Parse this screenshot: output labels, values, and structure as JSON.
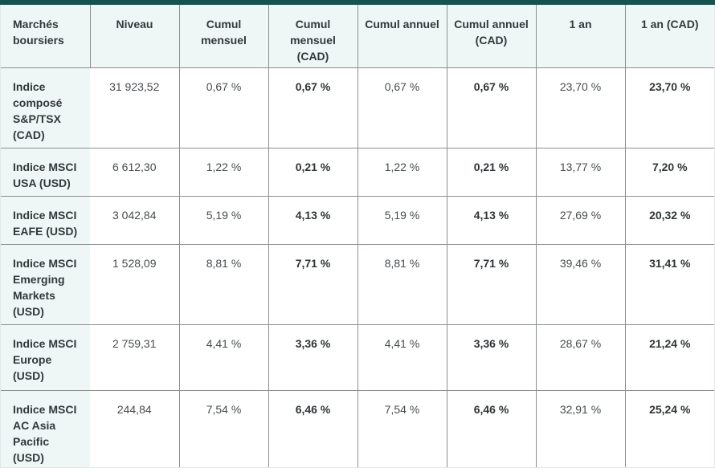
{
  "colors": {
    "accent_bar": "#14534e",
    "row_tint": "#eff7f6",
    "grid_line": "#8b908b",
    "header_text": "#33383b",
    "value_text": "#474c4f"
  },
  "table": {
    "header": [
      "Marchés boursiers",
      "Niveau",
      "Cumul mensuel",
      "Cumul mensuel (CAD)",
      "Cumul annuel",
      "Cumul annuel (CAD)",
      "1 an",
      "1 an (CAD)"
    ],
    "rows": [
      {
        "cells": [
          "Indice composé S&P/TSX (CAD)",
          "31 923,52",
          "0,67 %",
          "0,67 %",
          "0,67 %",
          "0,67 %",
          "23,70 %",
          "23,70 %"
        ]
      },
      {
        "cells": [
          "Indice MSCI USA (USD)",
          "6 612,30",
          "1,22 %",
          "0,21 %",
          "1,22 %",
          "0,21 %",
          "13,77 %",
          "7,20 %"
        ]
      },
      {
        "cells": [
          "Indice MSCI EAFE (USD)",
          "3 042,84",
          "5,19 %",
          "4,13 %",
          "5,19 %",
          "4,13 %",
          "27,69 %",
          "20,32 %"
        ]
      },
      {
        "cells": [
          "Indice MSCI Emerging Markets (USD)",
          "1 528,09",
          "8,81 %",
          "7,71 %",
          "8,81 %",
          "7,71 %",
          "39,46 %",
          "31,41 %"
        ]
      },
      {
        "cells": [
          "Indice MSCI Europe (USD)",
          "2 759,31",
          "4,41 %",
          "3,36 %",
          "4,41 %",
          "3,36 %",
          "28,67 %",
          "21,24 %"
        ]
      },
      {
        "cells": [
          "Indice MSCI AC Asia Pacific (USD)",
          "244,84",
          "7,54 %",
          "6,46 %",
          "7,54 %",
          "6,46 %",
          "32,91 %",
          "25,24 %"
        ]
      }
    ]
  }
}
